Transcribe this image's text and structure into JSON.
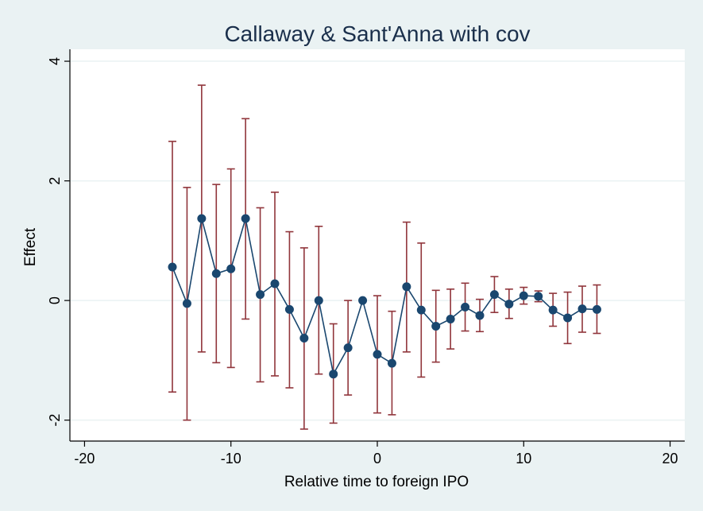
{
  "chart_data": {
    "type": "scatter",
    "title": "Callaway & Sant'Anna with cov",
    "xlabel": "Relative time to foreign IPO",
    "ylabel": "Effect",
    "xlim": [
      -21,
      21
    ],
    "ylim": [
      -2.35,
      4.2
    ],
    "xticks": [
      -20,
      -10,
      0,
      10,
      20
    ],
    "xtick_labels": [
      "-20",
      "-10",
      "0",
      "10",
      "20"
    ],
    "yticks": [
      -2,
      0,
      2,
      4
    ],
    "ytick_labels": [
      "-2",
      "0",
      "2",
      "4"
    ],
    "grid": "horizontal",
    "legend": "none",
    "colors": {
      "background": "#eaf2f3",
      "plot_area": "#ffffff",
      "line": "#1a476f",
      "marker": "#1a476f",
      "ci": "#90353b",
      "grid": "#eaf2f3"
    },
    "series": [
      {
        "type": "line-with-ci",
        "x": [
          -14,
          -13,
          -12,
          -11,
          -10,
          -9,
          -8,
          -7,
          -6,
          -5,
          -4,
          -3,
          -2,
          -1,
          0,
          1,
          2,
          3,
          4,
          5,
          6,
          7,
          8,
          9,
          10,
          11,
          12,
          13,
          14,
          15
        ],
        "y": [
          0.56,
          -0.05,
          1.37,
          0.45,
          0.53,
          1.37,
          0.1,
          0.28,
          -0.15,
          -0.63,
          0.0,
          -1.23,
          -0.79,
          0.0,
          -0.9,
          -1.05,
          0.23,
          -0.16,
          -0.43,
          -0.31,
          -0.11,
          -0.25,
          0.1,
          -0.06,
          0.08,
          0.07,
          -0.16,
          -0.29,
          -0.14,
          -0.15
        ],
        "ci_low": [
          -1.53,
          -2.0,
          -0.86,
          -1.04,
          -1.12,
          -0.31,
          -1.36,
          -1.26,
          -1.46,
          -2.15,
          -1.23,
          -2.05,
          -1.58,
          -0.02,
          -1.88,
          -1.91,
          -0.86,
          -1.28,
          -1.03,
          -0.81,
          -0.51,
          -0.52,
          -0.2,
          -0.3,
          -0.06,
          -0.02,
          -0.43,
          -0.72,
          -0.53,
          -0.55
        ],
        "ci_high": [
          2.66,
          1.89,
          3.6,
          1.94,
          2.2,
          3.04,
          1.55,
          1.81,
          1.15,
          0.88,
          1.24,
          -0.39,
          0.0,
          0.0,
          0.08,
          -0.18,
          1.31,
          0.96,
          0.17,
          0.19,
          0.29,
          0.02,
          0.4,
          0.19,
          0.22,
          0.16,
          0.12,
          0.14,
          0.24,
          0.26
        ]
      }
    ]
  }
}
